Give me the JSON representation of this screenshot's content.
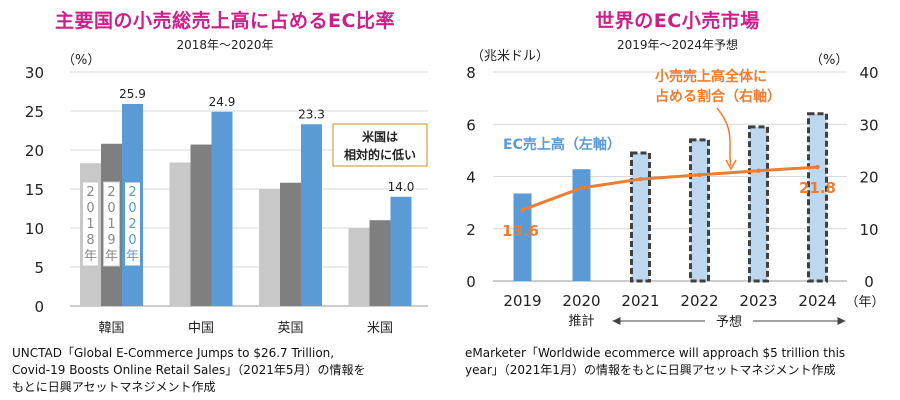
{
  "chart_data": [
    {
      "type": "bar",
      "title": "主要国の小売総売上高に占めるEC比率",
      "subtitle": "2018年〜2020年",
      "ylabel": "（%）",
      "ylim": [
        0,
        30
      ],
      "yticks": [
        0,
        5,
        10,
        15,
        20,
        25,
        30
      ],
      "categories": [
        "韓国",
        "中国",
        "英国",
        "米国"
      ],
      "series": [
        {
          "name": "2018年",
          "values": [
            18.3,
            18.4,
            15.0,
            10.0
          ],
          "color": "#c8c8c8"
        },
        {
          "name": "2019年",
          "values": [
            20.8,
            20.7,
            15.8,
            11.0
          ],
          "color": "#7f7f7f"
        },
        {
          "name": "2020年",
          "values": [
            25.9,
            24.9,
            23.3,
            14.0
          ],
          "color": "#5b9bd5"
        }
      ],
      "data_labels": [
        "25.9",
        "24.9",
        "23.3",
        "14.0"
      ],
      "series_labels": [
        "2018年",
        "2019年",
        "2020年"
      ],
      "callout": {
        "line1": "米国は",
        "line2": "相対的に低い"
      },
      "source": [
        "UNCTAD「Global E-Commerce Jumps to $26.7 Trillion,",
        "Covid-19 Boosts Online Retail Sales」（2021年5月）の情報を",
        "もとに日興アセットマネジメント作成"
      ]
    },
    {
      "type": "bar+line",
      "title": "世界のEC小売市場",
      "subtitle": "2019年〜2024年予想",
      "ylabel_left": "（兆米ドル）",
      "ylabel_right": "（%）",
      "ylim_left": [
        0,
        8
      ],
      "ylim_right": [
        0,
        40
      ],
      "yticks_left": [
        0,
        2,
        4,
        6,
        8
      ],
      "yticks_right": [
        0,
        10,
        20,
        30,
        40
      ],
      "x": [
        "2019",
        "2020",
        "2021",
        "2022",
        "2023",
        "2024"
      ],
      "x_unit": "（年）",
      "bars": {
        "name": "EC売上高（左軸）",
        "values": [
          3.35,
          4.28,
          4.9,
          5.4,
          5.9,
          6.4
        ],
        "forecast_from_index": 2
      },
      "line": {
        "name": "小売売上高全体に占める割合（右軸）",
        "values": [
          13.6,
          17.8,
          19.5,
          20.3,
          21.1,
          21.8
        ]
      },
      "point_labels": [
        "13.6",
        "21.8"
      ],
      "annotations": {
        "actual": "推計",
        "forecast": "予想"
      },
      "colors": {
        "bar": "#5b9bd5",
        "forecast_fill": "#bdd7ee",
        "forecast_border": "#404040",
        "line": "#ed7d31",
        "bar_label": "#5b9bd5",
        "line_label": "#ed7d31"
      },
      "legend_bar_label": "EC売上高（左軸）",
      "legend_line_label_1": "小売売上高全体に",
      "legend_line_label_2": "占める割合（右軸）",
      "source": [
        "eMarketer「Worldwide ecommerce will approach $5 trillion this",
        "year」（2021年1月）の情報をもとに日興アセットマネジメント作成"
      ]
    }
  ]
}
